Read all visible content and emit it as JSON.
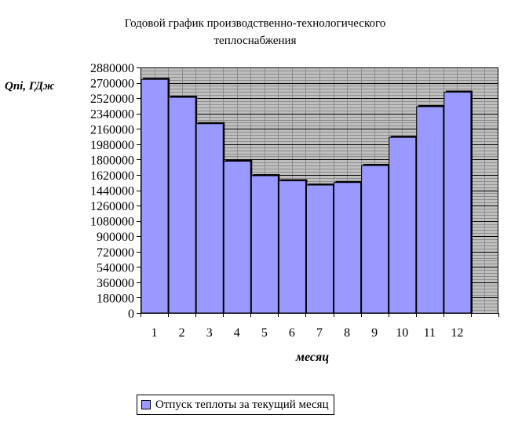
{
  "chart_data": {
    "type": "bar",
    "title": [
      "Годовой график производственно-технологического",
      "теплоснабжения"
    ],
    "ylabel": "Qni, ГДж",
    "xlabel": "месяц",
    "categories": [
      "1",
      "2",
      "3",
      "4",
      "5",
      "6",
      "7",
      "8",
      "9",
      "10",
      "11",
      "12"
    ],
    "series": [
      {
        "name": "Отпуск теплоты за текущий месяц",
        "values": [
          2740000,
          2530000,
          2220000,
          1780000,
          1610000,
          1550000,
          1500000,
          1530000,
          1730000,
          2060000,
          2420000,
          2590000
        ]
      }
    ],
    "ylim": [
      0,
      2880000
    ],
    "yticks": [
      0,
      180000,
      360000,
      540000,
      720000,
      900000,
      1080000,
      1260000,
      1440000,
      1620000,
      1800000,
      1980000,
      2160000,
      2340000,
      2520000,
      2700000,
      2880000
    ],
    "grid": true,
    "legend_position": "bottom",
    "colors": {
      "bar": "#9999ff",
      "plot_background": "#bfbfbf",
      "grid_minor": "#8c8c8c",
      "grid_major": "#000000"
    }
  }
}
